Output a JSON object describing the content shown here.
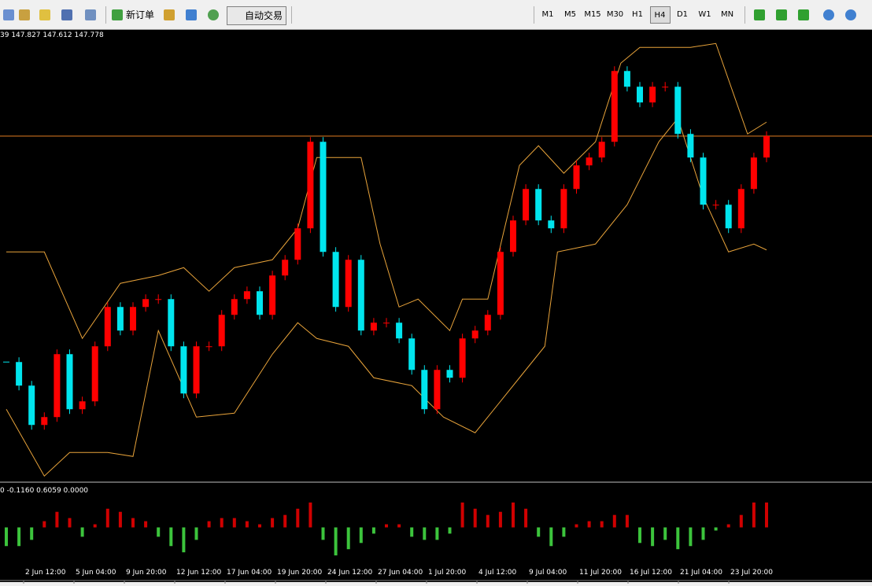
{
  "toolbar": {
    "new_order": "新订单",
    "auto_trading": "自动交易",
    "timeframes": [
      "M1",
      "M5",
      "M15",
      "M30",
      "H1",
      "H4",
      "D1",
      "W1",
      "MN"
    ]
  },
  "chart_data": [
    {
      "type": "candlestick",
      "info": "39 147.827 147.612 147.778",
      "closes": [
        145.48,
        145.24,
        144.84,
        144.92,
        145.56,
        145.0,
        145.08,
        145.64,
        146.04,
        145.8,
        146.04,
        146.12,
        146.12,
        145.64,
        145.16,
        145.64,
        145.64,
        145.96,
        146.12,
        146.2,
        145.96,
        146.36,
        146.52,
        146.84,
        147.72,
        146.6,
        146.04,
        146.52,
        145.8,
        145.88,
        145.88,
        145.72,
        145.4,
        145.0,
        145.4,
        145.32,
        145.72,
        145.8,
        145.96,
        146.6,
        146.92,
        147.24,
        146.92,
        146.84,
        147.24,
        147.48,
        147.56,
        147.72,
        148.44,
        148.28,
        148.12,
        148.28,
        148.28,
        147.8,
        147.56,
        147.08,
        147.08,
        146.84,
        147.24,
        147.56,
        147.778
      ],
      "upper_band": {
        "x": [
          0,
          3,
          6,
          9,
          12,
          14,
          16,
          18,
          21,
          23,
          24.5,
          28,
          29.5,
          31,
          32.5,
          35,
          36,
          38,
          40.5,
          42,
          44,
          46.5,
          48.5,
          50,
          54,
          56,
          58.5,
          60
        ],
        "values": [
          146.6,
          146.6,
          145.72,
          146.28,
          146.36,
          146.44,
          146.2,
          146.44,
          146.52,
          146.84,
          147.56,
          147.56,
          146.68,
          146.04,
          146.12,
          145.8,
          146.12,
          146.12,
          147.48,
          147.68,
          147.4,
          147.72,
          148.52,
          148.68,
          148.68,
          148.72,
          147.8,
          147.92
        ]
      },
      "lower_band": {
        "x": [
          0,
          3,
          5,
          8,
          10,
          12,
          15,
          18,
          21,
          23,
          24.5,
          27,
          29,
          32,
          34.5,
          37,
          40.5,
          42.5,
          43.5,
          46.5,
          49,
          51.5,
          53,
          55,
          57,
          59,
          60
        ],
        "values": [
          145.0,
          144.32,
          144.56,
          144.56,
          144.52,
          145.8,
          144.92,
          144.96,
          145.56,
          145.88,
          145.72,
          145.64,
          145.32,
          145.24,
          144.92,
          144.76,
          145.32,
          145.64,
          146.6,
          146.68,
          147.08,
          147.72,
          147.96,
          147.16,
          146.6,
          146.68,
          146.62
        ]
      },
      "bid_line": 147.778,
      "ylim": [
        144.282,
        148.842
      ],
      "color_up": "#ff0000",
      "color_down": "#00e5ee",
      "band_color": "#e8a33a",
      "bid_color": "#e07b20",
      "x_labels": [
        "2 Jun 12:00",
        "5 Jun 04:00",
        "9 Jun 20:00",
        "12 Jun 12:00",
        "17 Jun 04:00",
        "19 Jun 20:00",
        "24 Jun 12:00",
        "27 Jun 04:00",
        "1 Jul 20:00",
        "4 Jul 12:00",
        "9 Jul 04:00",
        "11 Jul 20:00",
        "16 Jul 12:00",
        "21 Jul 04:00",
        "23 Jul 20:00"
      ]
    },
    {
      "type": "bar",
      "info": "0 -0.1160 0.6059 0.0000",
      "values": [
        -0.6,
        -0.6,
        -0.4,
        0.2,
        0.5,
        0.3,
        -0.3,
        0.1,
        0.6,
        0.5,
        0.3,
        0.2,
        -0.3,
        -0.6,
        -0.8,
        -0.4,
        0.2,
        0.3,
        0.3,
        0.2,
        0.1,
        0.3,
        0.4,
        0.6,
        0.8,
        -0.4,
        -0.9,
        -0.7,
        -0.5,
        -0.2,
        0.1,
        0.1,
        -0.3,
        -0.4,
        -0.4,
        -0.2,
        0.8,
        0.6,
        0.4,
        0.5,
        0.8,
        0.6,
        -0.3,
        -0.6,
        -0.3,
        0.1,
        0.2,
        0.2,
        0.4,
        0.4,
        -0.5,
        -0.6,
        -0.4,
        -0.7,
        -0.6,
        -0.4,
        -0.1,
        0.1,
        0.4,
        0.8,
        0.8
      ],
      "ylim": [
        -1.2,
        1.2
      ],
      "color_pos": "#d00000",
      "color_neg": "#3cc43c"
    }
  ]
}
